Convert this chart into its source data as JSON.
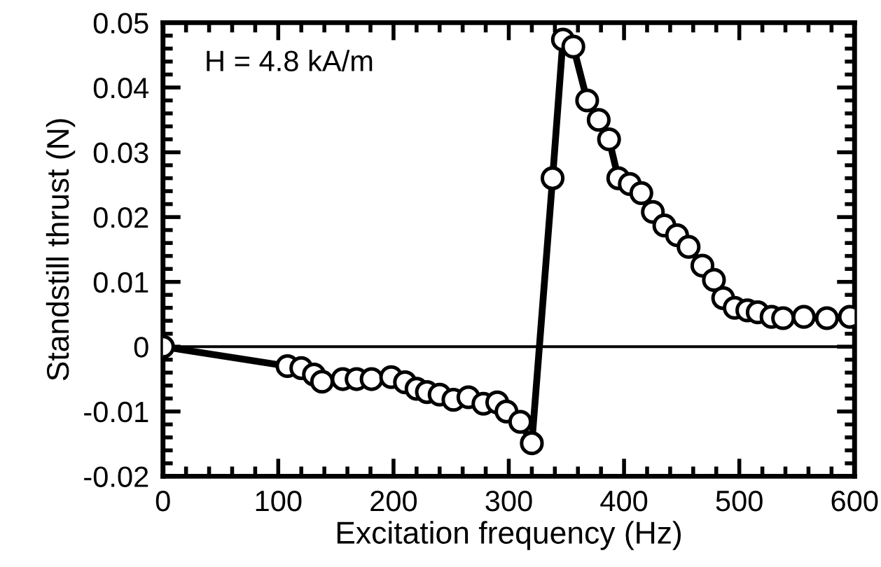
{
  "chart_data": {
    "type": "line",
    "xlabel": "Excitation frequency (Hz)",
    "ylabel": "Standstill thrust (N)",
    "annotations": [
      "H = 4.8 kA/m"
    ],
    "series": [
      {
        "color": "#000000",
        "x": [
          0,
          108,
          120,
          131,
          138,
          156,
          168,
          181,
          198,
          210,
          220,
          229,
          240,
          252,
          265,
          278,
          290,
          298,
          310,
          320,
          338,
          347,
          356,
          368,
          378,
          387,
          395,
          405,
          415,
          425,
          435,
          446,
          456,
          468,
          478,
          486,
          496,
          507,
          516,
          528,
          538,
          556,
          576,
          596
        ],
        "values": [
          0,
          -0.003,
          -0.0033,
          -0.0043,
          -0.0054,
          -0.005,
          -0.005,
          -0.005,
          -0.0047,
          -0.0055,
          -0.0065,
          -0.007,
          -0.0074,
          -0.0082,
          -0.0078,
          -0.0088,
          -0.0086,
          -0.01,
          -0.0116,
          -0.0149,
          0.026,
          0.0474,
          0.0463,
          0.038,
          0.035,
          0.032,
          0.026,
          0.0251,
          0.0237,
          0.0208,
          0.0187,
          0.0172,
          0.0154,
          0.0125,
          0.0103,
          0.0075,
          0.006,
          0.0056,
          0.0053,
          0.0046,
          0.0044,
          0.0046,
          0.0044,
          0.0046
        ]
      }
    ],
    "marker": "circle",
    "line_style": "solid",
    "grid": false,
    "legend": false,
    "xlim": [
      0,
      600
    ],
    "xticks": [
      0,
      100,
      200,
      300,
      400,
      500,
      600
    ],
    "ylim": [
      -0.02,
      0.05
    ],
    "yticks": [
      -0.02,
      -0.01,
      0,
      0.01,
      0.02,
      0.03,
      0.04,
      0.05
    ],
    "ref_lines": [
      {
        "axis": "y",
        "value": 0,
        "color": "#000000",
        "line_style": "solid"
      }
    ]
  }
}
